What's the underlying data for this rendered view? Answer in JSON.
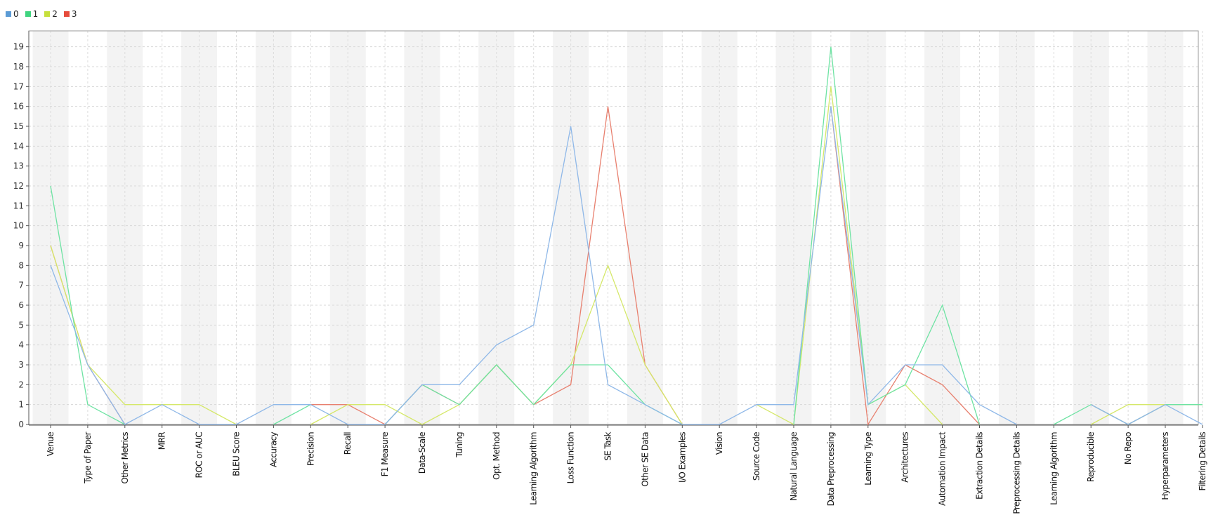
{
  "chart_data": {
    "type": "line",
    "title": "",
    "xlabel": "",
    "ylabel": "",
    "ylim": [
      0,
      19.8
    ],
    "yticks": [
      0,
      1,
      2,
      3,
      4,
      5,
      6,
      7,
      8,
      9,
      10,
      11,
      12,
      13,
      14,
      15,
      16,
      17,
      18,
      19
    ],
    "grid": true,
    "legend_position": "top-left",
    "categories": [
      "Venue",
      "Type of Paper",
      "Other Metrics",
      "MRR",
      "ROC or AUC",
      "BLEU Score",
      "Accuracy",
      "Precision",
      "Recall",
      "F1 Measure",
      "Data-Scale",
      "Tuning",
      "Opt. Method",
      "Learning Algorithm",
      "Loss Function",
      "SE Task",
      "Other SE Data",
      "I/O Examples",
      "Vision",
      "Source Code",
      "Natural Language",
      "Data Preprocessing",
      "Learning Type",
      "Architectures",
      "Automation Impact",
      "Extraction Details",
      "Preprocessing Details",
      "Learning Algorithm",
      "Reproducible",
      "No Repo",
      "Hyperparameters",
      "Filtering Details"
    ],
    "series": [
      {
        "name": "0",
        "color": "#5b9bd5",
        "line_color": "#8fb8e8",
        "values": [
          8,
          3,
          0,
          1,
          0,
          0,
          1,
          1,
          0,
          0,
          2,
          2,
          4,
          5,
          15,
          2,
          1,
          0,
          0,
          1,
          1,
          16,
          1,
          3,
          3,
          1,
          0,
          null,
          1,
          0,
          1,
          0
        ]
      },
      {
        "name": "1",
        "color": "#3fd47f",
        "line_color": "#6ee3a3",
        "values": [
          12,
          1,
          0,
          null,
          null,
          null,
          0,
          1,
          null,
          0,
          2,
          1,
          3,
          1,
          3,
          3,
          1,
          0,
          null,
          null,
          0,
          19,
          1,
          2,
          6,
          0,
          null,
          0,
          1,
          0,
          1,
          1
        ]
      },
      {
        "name": "2",
        "color": "#c6e03c",
        "line_color": "#d5e86a",
        "values": [
          9,
          3,
          1,
          1,
          1,
          0,
          null,
          0,
          1,
          1,
          0,
          1,
          3,
          1,
          3,
          8,
          3,
          0,
          null,
          1,
          0,
          17,
          1,
          2,
          0,
          null,
          null,
          null,
          0,
          1,
          1,
          1
        ]
      },
      {
        "name": "3",
        "color": "#e64c3c",
        "line_color": "#e8806f",
        "values": [
          9,
          3,
          0,
          null,
          null,
          null,
          null,
          1,
          1,
          0,
          2,
          1,
          3,
          1,
          2,
          16,
          3,
          0,
          null,
          null,
          null,
          16,
          0,
          3,
          2,
          0,
          null,
          null,
          1,
          0,
          1,
          1
        ]
      }
    ]
  }
}
